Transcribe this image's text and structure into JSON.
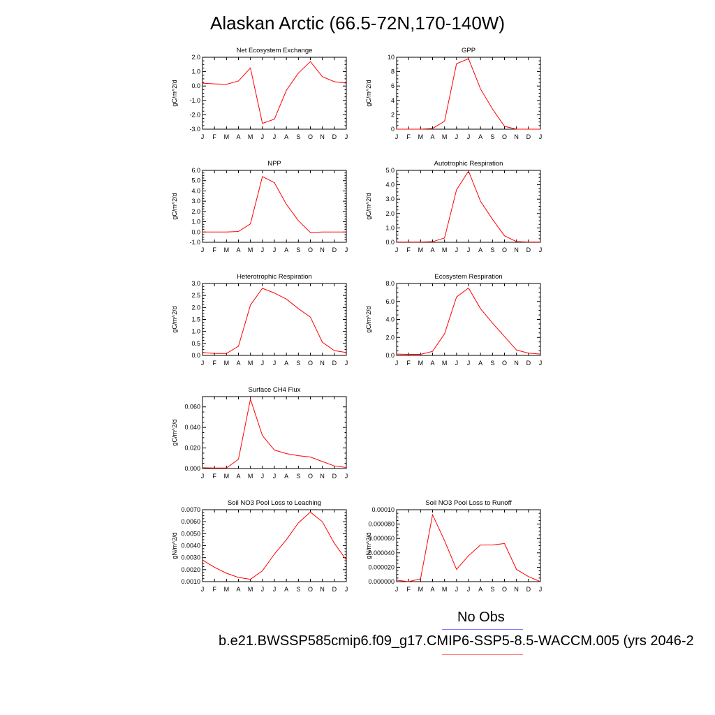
{
  "page": {
    "title": "Alaskan Arctic (66.5-72N,170-140W)",
    "legend_obs_label": "No Obs",
    "legend_case_label": "b.e21.BWSSP585cmip6.f09_g17.CMIP6-SSP5-8.5-WACCM.005 (yrs 2046-2",
    "line_color": "#ff0000"
  },
  "chart_data": [
    {
      "type": "line",
      "title": "Net Ecosystem Exchange",
      "ylabel": "gC/m^2/d",
      "x": [
        "J",
        "F",
        "M",
        "A",
        "M",
        "J",
        "J",
        "A",
        "S",
        "O",
        "N",
        "D",
        "J"
      ],
      "values": [
        0.2,
        0.15,
        0.12,
        0.35,
        1.25,
        -2.6,
        -2.3,
        -0.3,
        0.9,
        1.7,
        0.65,
        0.3,
        0.2
      ],
      "ylim": [
        -3.0,
        2.0
      ],
      "yticks": [
        "2.0",
        "1.0",
        "0.0",
        "-1.0",
        "-2.0",
        "-3.0"
      ]
    },
    {
      "type": "line",
      "title": "GPP",
      "ylabel": "gC/m^2/d",
      "x": [
        "J",
        "F",
        "M",
        "A",
        "M",
        "J",
        "J",
        "A",
        "S",
        "O",
        "N",
        "D",
        "J"
      ],
      "values": [
        0,
        0,
        0,
        0.1,
        1.1,
        9.1,
        9.8,
        5.6,
        2.8,
        0.4,
        0,
        0,
        0
      ],
      "ylim": [
        0,
        10
      ],
      "yticks": [
        "10",
        "8",
        "6",
        "4",
        "2",
        "0"
      ]
    },
    {
      "type": "line",
      "title": "NPP",
      "ylabel": "gC/m^2/d",
      "x": [
        "J",
        "F",
        "M",
        "A",
        "M",
        "J",
        "J",
        "A",
        "S",
        "O",
        "N",
        "D",
        "J"
      ],
      "values": [
        0,
        0,
        0,
        0.05,
        0.8,
        5.4,
        4.8,
        2.7,
        1.1,
        -0.05,
        0,
        0,
        0
      ],
      "ylim": [
        -1.0,
        6.0
      ],
      "yticks": [
        "6.0",
        "5.0",
        "4.0",
        "3.0",
        "2.0",
        "1.0",
        "0.0",
        "-1.0"
      ]
    },
    {
      "type": "line",
      "title": "Autotrophic Respiration",
      "ylabel": "gC/m^2/d",
      "x": [
        "J",
        "F",
        "M",
        "A",
        "M",
        "J",
        "J",
        "A",
        "S",
        "O",
        "N",
        "D",
        "J"
      ],
      "values": [
        0.02,
        0.02,
        0.02,
        0.04,
        0.3,
        3.65,
        4.95,
        2.85,
        1.6,
        0.45,
        0.05,
        0.02,
        0.02
      ],
      "ylim": [
        0.0,
        5.0
      ],
      "yticks": [
        "5.0",
        "4.0",
        "3.0",
        "2.0",
        "1.0",
        "0.0"
      ]
    },
    {
      "type": "line",
      "title": "Heterotrophic Respiration",
      "ylabel": "gC/m^2/d",
      "x": [
        "J",
        "F",
        "M",
        "A",
        "M",
        "J",
        "J",
        "A",
        "S",
        "O",
        "N",
        "D",
        "J"
      ],
      "values": [
        0.12,
        0.08,
        0.08,
        0.38,
        2.1,
        2.8,
        2.6,
        2.35,
        1.95,
        1.6,
        0.55,
        0.2,
        0.12
      ],
      "ylim": [
        0.0,
        3.0
      ],
      "yticks": [
        "3.0",
        "2.5",
        "2.0",
        "1.5",
        "1.0",
        "0.5",
        "0.0"
      ]
    },
    {
      "type": "line",
      "title": "Ecosystem Respiration",
      "ylabel": "gC/m^2/d",
      "x": [
        "J",
        "F",
        "M",
        "A",
        "M",
        "J",
        "J",
        "A",
        "S",
        "O",
        "N",
        "D",
        "J"
      ],
      "values": [
        0.15,
        0.12,
        0.12,
        0.45,
        2.4,
        6.5,
        7.5,
        5.2,
        3.6,
        2.1,
        0.6,
        0.25,
        0.15
      ],
      "ylim": [
        0.0,
        8.0
      ],
      "yticks": [
        "8.0",
        "6.0",
        "4.0",
        "2.0",
        "0.0"
      ]
    },
    {
      "type": "line",
      "title": "Surface CH4 Flux",
      "ylabel": "gC/m^2/d",
      "x": [
        "J",
        "F",
        "M",
        "A",
        "M",
        "J",
        "J",
        "A",
        "S",
        "O",
        "N",
        "D",
        "J"
      ],
      "values": [
        0.0008,
        0.0005,
        0.0005,
        0.009,
        0.0675,
        0.032,
        0.018,
        0.0145,
        0.0125,
        0.0112,
        0.0068,
        0.0025,
        0.001
      ],
      "ylim": [
        0.0,
        0.07
      ],
      "yticks": [
        "0.060",
        "0.040",
        "0.020",
        "0.000"
      ],
      "ytick_values": [
        0.06,
        0.04,
        0.02,
        0.0
      ]
    },
    {
      "type": "line",
      "title": "Soil NO3 Pool Loss to Leaching",
      "ylabel": "gN/m^2/d",
      "x": [
        "J",
        "F",
        "M",
        "A",
        "M",
        "J",
        "J",
        "A",
        "S",
        "O",
        "N",
        "D",
        "J"
      ],
      "values": [
        0.0028,
        0.0022,
        0.0017,
        0.00135,
        0.0012,
        0.0019,
        0.0033,
        0.0045,
        0.0059,
        0.0068,
        0.006,
        0.0042,
        0.0028
      ],
      "ylim": [
        0.001,
        0.007
      ],
      "yticks": [
        "0.0070",
        "0.0060",
        "0.0050",
        "0.0040",
        "0.0030",
        "0.0020",
        "0.0010"
      ]
    },
    {
      "type": "line",
      "title": "Soil NO3 Pool Loss to Runoff",
      "ylabel": "gN/m^2/d",
      "x": [
        "J",
        "F",
        "M",
        "A",
        "M",
        "J",
        "J",
        "A",
        "S",
        "O",
        "N",
        "D",
        "J"
      ],
      "values": [
        2e-06,
        0.0,
        4e-06,
        9.3e-05,
        5.7e-05,
        1.7e-05,
        3.6e-05,
        5.1e-05,
        5.1e-05,
        5.3e-05,
        1.7e-05,
        7e-06,
        0.0
      ],
      "ylim": [
        0.0,
        0.0001
      ],
      "yticks": [
        "0.00010",
        "0.000080",
        "0.000060",
        "0.000040",
        "0.000020",
        "0.000000"
      ]
    }
  ]
}
